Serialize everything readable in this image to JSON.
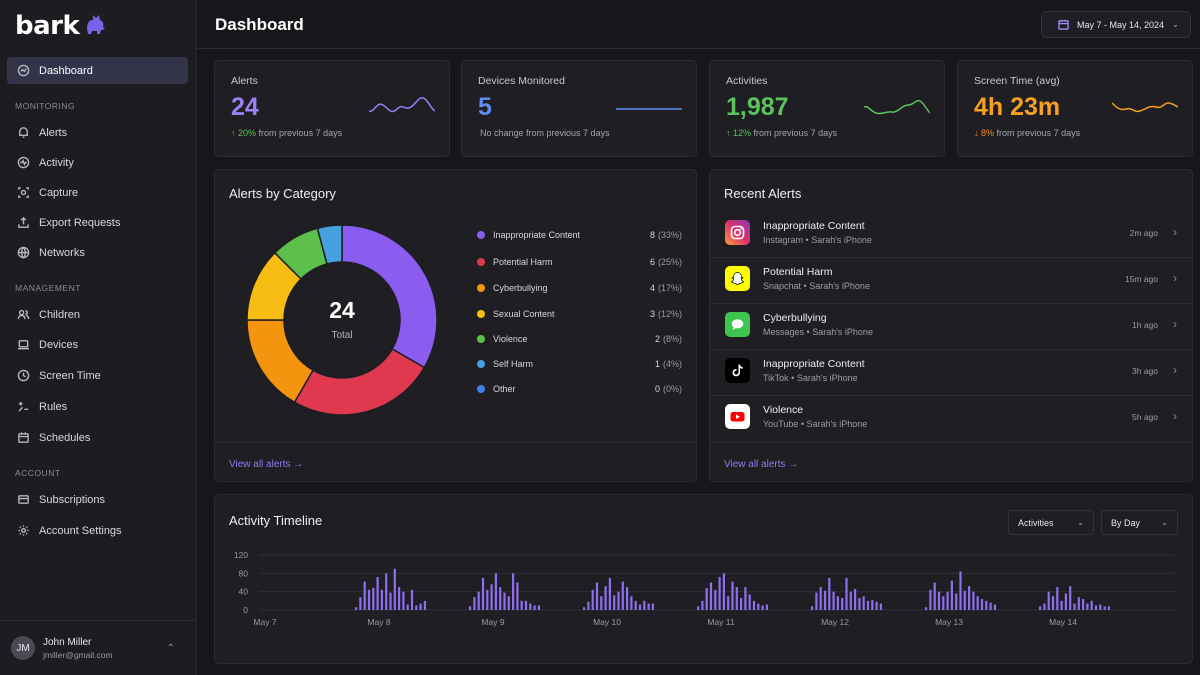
{
  "app": {
    "logo_text": "bark"
  },
  "sidebar": {
    "dashboard_label": "Dashboard",
    "sections": [
      {
        "label": "Monitoring",
        "items": [
          "Alerts",
          "Activity",
          "Capture",
          "Export Requests",
          "Networks"
        ]
      },
      {
        "label": "Management",
        "items": [
          "Children",
          "Devices",
          "Screen Time",
          "Rules",
          "Schedules"
        ]
      },
      {
        "label": "Account",
        "items": [
          "Subscriptions",
          "Account Settings"
        ]
      }
    ],
    "user": {
      "initials": "JM",
      "name": "John Miller",
      "email": "jmiller@gmail.com"
    }
  },
  "header": {
    "title": "Dashboard",
    "date_range": "May 7 - May 14, 2024"
  },
  "stats": [
    {
      "label": "Alerts",
      "value": "24",
      "trend": "up",
      "change": "20%",
      "suffix": "from previous 7 days",
      "color": "#9b7ff6"
    },
    {
      "label": "Devices Monitored",
      "value": "5",
      "trend": "none",
      "change": "",
      "suffix": "No change from previous 7 days",
      "color": "#5b8def"
    },
    {
      "label": "Activities",
      "value": "1,987",
      "trend": "up",
      "change": "12%",
      "suffix": "from previous 7 days",
      "color": "#5cc25e"
    },
    {
      "label": "Screen Time (avg)",
      "value": "4h 23m",
      "trend": "down",
      "change": "8%",
      "suffix": "from previous 7 days",
      "color": "#f5a020"
    }
  ],
  "alerts_by_category": {
    "title": "Alerts by Category",
    "total": "24",
    "total_label": "Total",
    "view_all": "View all alerts →",
    "categories": [
      {
        "name": "Inappropriate Content",
        "count": 8,
        "pct": "(33%)",
        "color": "#8b5cf0"
      },
      {
        "name": "Potential Harm",
        "count": 6,
        "pct": "(25%)",
        "color": "#e0394f"
      },
      {
        "name": "Cyberbullying",
        "count": 4,
        "pct": "(17%)",
        "color": "#f5940f"
      },
      {
        "name": "Sexual Content",
        "count": 3,
        "pct": "(12%)",
        "color": "#f7bd12"
      },
      {
        "name": "Violence",
        "count": 2,
        "pct": "(8%)",
        "color": "#5cc04a"
      },
      {
        "name": "Self Harm",
        "count": 1,
        "pct": "(4%)",
        "color": "#46a0e0"
      },
      {
        "name": "Other",
        "count": 0,
        "pct": "(0%)",
        "color": "#3f7fe8"
      }
    ]
  },
  "recent_alerts": {
    "title": "Recent Alerts",
    "view_all": "View all alerts →",
    "items": [
      {
        "title": "Inappropriate Content",
        "app": "Instagram",
        "device": "Sarah's iPhone",
        "time": "2m ago",
        "icon": "instagram-icon"
      },
      {
        "title": "Potential Harm",
        "app": "Snapchat",
        "device": "Sarah's iPhone",
        "time": "15m ago",
        "icon": "snapchat-icon"
      },
      {
        "title": "Cyberbullying",
        "app": "Messages",
        "device": "Sarah's iPhone",
        "time": "1h ago",
        "icon": "messages-icon"
      },
      {
        "title": "Inappropriate Content",
        "app": "TikTok",
        "device": "Sarah's iPhone",
        "time": "3h ago",
        "icon": "tiktok-icon"
      },
      {
        "title": "Violence",
        "app": "YouTube",
        "device": "Sarah's iPhone",
        "time": "5h ago",
        "icon": "youtube-icon"
      }
    ]
  },
  "timeline": {
    "title": "Activity Timeline",
    "metric_select": "Activities",
    "group_select": "By Day"
  },
  "chart_data": {
    "type": "bar",
    "title": "Activity Timeline",
    "ylim": [
      0,
      120
    ],
    "yticks": [
      0,
      40,
      80,
      120
    ],
    "xtick_labels": [
      "May 7",
      "May 8",
      "May 9",
      "May 10",
      "May 11",
      "May 12",
      "May 13",
      "May 14"
    ],
    "grid": true,
    "series_color": "#8d6ff0",
    "days": [
      {
        "label": "May 7",
        "values": []
      },
      {
        "label": "May 8",
        "values": [
          6,
          28,
          62,
          44,
          48,
          72,
          44,
          80,
          38,
          90,
          50,
          40,
          12,
          44,
          10,
          14,
          20
        ]
      },
      {
        "label": "May 9",
        "values": [
          8,
          28,
          40,
          70,
          44,
          56,
          80,
          50,
          38,
          30,
          80,
          60,
          20,
          20,
          14,
          10,
          10
        ]
      },
      {
        "label": "May 10",
        "values": [
          6,
          18,
          44,
          60,
          30,
          52,
          70,
          32,
          40,
          62,
          50,
          30,
          20,
          12,
          20,
          14,
          14
        ]
      },
      {
        "label": "May 11",
        "values": [
          8,
          20,
          48,
          60,
          44,
          72,
          80,
          30,
          62,
          50,
          26,
          50,
          34,
          20,
          14,
          10,
          12
        ]
      },
      {
        "label": "May 12",
        "values": [
          8,
          38,
          50,
          42,
          70,
          40,
          30,
          26,
          70,
          40,
          46,
          26,
          30,
          20,
          22,
          18,
          14
        ]
      },
      {
        "label": "May 13",
        "values": [
          6,
          44,
          60,
          40,
          30,
          40,
          64,
          36,
          84,
          42,
          52,
          40,
          30,
          24,
          20,
          16,
          12
        ]
      },
      {
        "label": "May 14",
        "values": [
          8,
          14,
          40,
          30,
          50,
          20,
          36,
          52,
          14,
          28,
          24,
          14,
          20,
          10,
          12,
          8,
          8
        ]
      }
    ]
  }
}
